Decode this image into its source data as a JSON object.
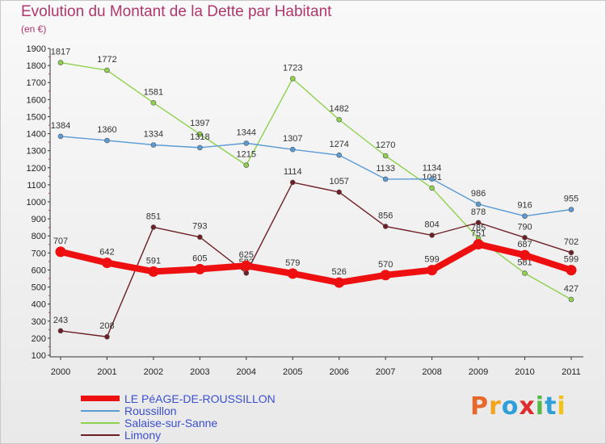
{
  "title": "Evolution du Montant de la Dette par Habitant",
  "subtitle": "(en €)",
  "logo": {
    "text": "Proxiti",
    "letter_colors": [
      "#e8672a",
      "#f2a41c",
      "#2f9fd8",
      "#e02b2b",
      "#55b947",
      "#2f9fd8",
      "#f2c21c"
    ]
  },
  "chart_data": {
    "type": "line",
    "x": [
      "2000",
      "2001",
      "2002",
      "2003",
      "2004",
      "2005",
      "2006",
      "2007",
      "2008",
      "2009",
      "2010",
      "2011"
    ],
    "ylim": [
      100,
      1900
    ],
    "yticks": [
      100,
      200,
      300,
      400,
      500,
      600,
      700,
      800,
      900,
      1000,
      1100,
      1200,
      1300,
      1400,
      1500,
      1600,
      1700,
      1800,
      1900
    ],
    "grid": false,
    "legend_position": "bottom",
    "series": [
      {
        "name": "Salaise-sur-Sanne",
        "color": "#8ed14d",
        "values": [
          1817,
          1772,
          1581,
          1397,
          1215,
          1723,
          1482,
          1270,
          1081,
          785,
          581,
          427
        ]
      },
      {
        "name": "Roussillon",
        "color": "#5b9bd5",
        "values": [
          1384,
          1360,
          1334,
          1318,
          1344,
          1307,
          1274,
          1133,
          1134,
          986,
          916,
          955
        ]
      },
      {
        "name": "Limony",
        "color": "#6e1f26",
        "values": [
          243,
          208,
          851,
          793,
          582,
          1114,
          1057,
          856,
          804,
          878,
          790,
          702
        ]
      },
      {
        "name": "LE PéAGE-DE-ROUSSILLON",
        "color": "#ee1010",
        "values": [
          707,
          642,
          591,
          605,
          625,
          579,
          526,
          570,
          599,
          751,
          687,
          599
        ]
      }
    ]
  },
  "legend": [
    {
      "label": "LE PéAGE-DE-ROUSSILLON",
      "color": "#ee1010",
      "thickness": 7
    },
    {
      "label": "Roussillon",
      "color": "#5b9bd5",
      "thickness": 2
    },
    {
      "label": "Salaise-sur-Sanne",
      "color": "#8ed14d",
      "thickness": 2
    },
    {
      "label": "Limony",
      "color": "#6e1f26",
      "thickness": 2
    }
  ]
}
